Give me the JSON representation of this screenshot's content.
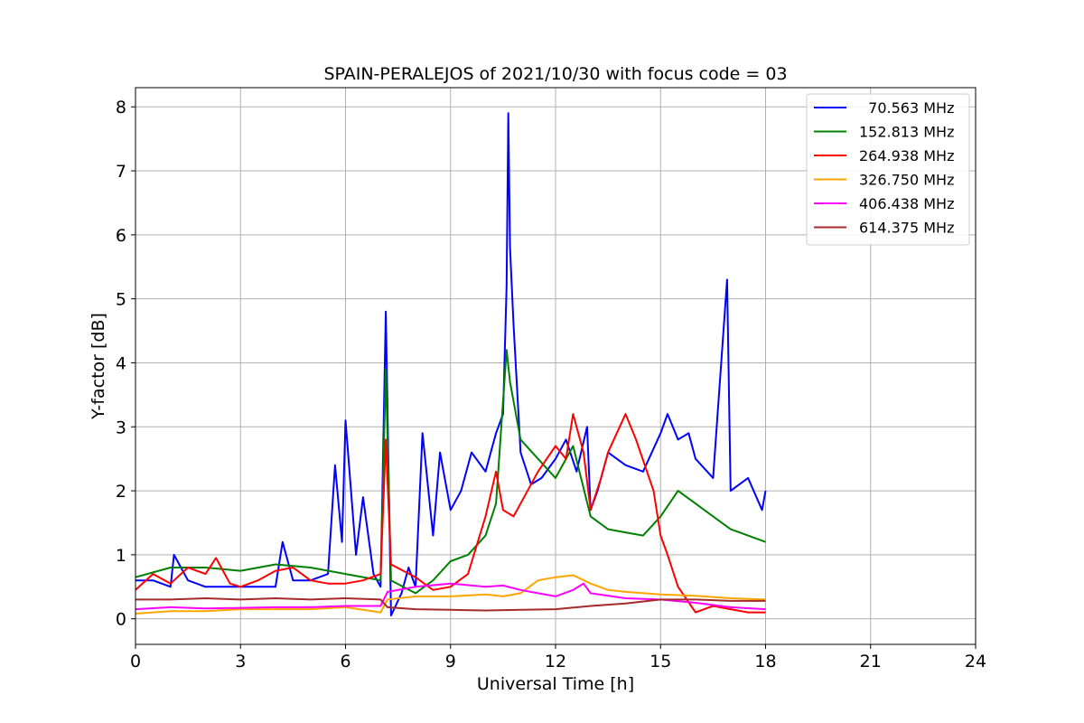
{
  "chart_data": {
    "type": "line",
    "title": "SPAIN-PERALEJOS of 2021/10/30 with focus code = 03",
    "xlabel": "Universal Time [h]",
    "ylabel": "Y-factor [dB]",
    "xlim": [
      0,
      24
    ],
    "ylim": [
      -0.4,
      8.3
    ],
    "xticks": [
      0,
      3,
      6,
      9,
      12,
      15,
      18,
      21,
      24
    ],
    "yticks": [
      0,
      1,
      2,
      3,
      4,
      5,
      6,
      7,
      8
    ],
    "grid": true,
    "legend_position": "top-right",
    "series": [
      {
        "name": "70.563 MHz",
        "legend_label": "  70.563 MHz",
        "color": "#0000ff",
        "x": [
          0,
          0.5,
          1,
          1.1,
          1.5,
          2,
          2.5,
          3,
          3.5,
          4,
          4.2,
          4.5,
          5,
          5.5,
          5.7,
          5.9,
          6,
          6.3,
          6.5,
          6.8,
          7,
          7.15,
          7.3,
          7.6,
          7.8,
          8,
          8.2,
          8.5,
          8.7,
          9,
          9.3,
          9.6,
          10,
          10.3,
          10.5,
          10.6,
          10.65,
          10.7,
          10.8,
          11,
          11.3,
          11.6,
          12,
          12.3,
          12.6,
          12.9,
          13,
          13.2,
          13.5,
          14,
          14.5,
          15,
          15.2,
          15.5,
          15.8,
          16,
          16.5,
          16.9,
          17,
          17.5,
          17.9,
          18
        ],
        "y": [
          0.6,
          0.6,
          0.5,
          1.0,
          0.6,
          0.5,
          0.5,
          0.5,
          0.5,
          0.5,
          1.2,
          0.6,
          0.6,
          0.7,
          2.4,
          1.2,
          3.1,
          1.0,
          1.9,
          0.7,
          0.5,
          4.8,
          0.05,
          0.4,
          0.8,
          0.5,
          2.9,
          1.3,
          2.6,
          1.7,
          2.0,
          2.6,
          2.3,
          2.9,
          3.2,
          5.2,
          7.9,
          5.8,
          4.6,
          2.6,
          2.1,
          2.2,
          2.5,
          2.8,
          2.3,
          3.0,
          1.7,
          2.0,
          2.6,
          2.4,
          2.3,
          2.9,
          3.2,
          2.8,
          2.9,
          2.5,
          2.2,
          5.3,
          2.0,
          2.2,
          1.7,
          2.0
        ]
      },
      {
        "name": "152.813 MHz",
        "legend_label": "152.813 MHz",
        "color": "#008000",
        "x": [
          0,
          1,
          2,
          3,
          4,
          5,
          6,
          7,
          7.15,
          7.3,
          8,
          8.5,
          9,
          9.5,
          10,
          10.3,
          10.6,
          10.7,
          11,
          11.5,
          12,
          12.5,
          13,
          13.5,
          14,
          14.5,
          15,
          15.5,
          16,
          16.5,
          17,
          17.5,
          18
        ],
        "y": [
          0.65,
          0.8,
          0.8,
          0.75,
          0.85,
          0.8,
          0.7,
          0.6,
          3.9,
          0.6,
          0.4,
          0.6,
          0.9,
          1.0,
          1.3,
          1.8,
          4.2,
          3.7,
          2.8,
          2.5,
          2.2,
          2.7,
          1.6,
          1.4,
          1.35,
          1.3,
          1.6,
          2.0,
          1.8,
          1.6,
          1.4,
          1.3,
          1.2
        ]
      },
      {
        "name": "264.938 MHz",
        "legend_label": "264.938 MHz",
        "color": "#ff0000",
        "x": [
          0,
          0.5,
          1,
          1.5,
          2,
          2.3,
          2.7,
          3,
          3.5,
          4,
          4.5,
          5,
          5.5,
          6,
          6.5,
          7,
          7.15,
          7.3,
          8,
          8.5,
          9,
          9.5,
          10,
          10.3,
          10.5,
          10.8,
          11,
          11.5,
          12,
          12.3,
          12.5,
          12.8,
          13,
          13.3,
          13.5,
          14,
          14.3,
          14.8,
          15,
          15.2,
          15.5,
          16,
          16.5,
          17,
          17.5,
          18
        ],
        "y": [
          0.45,
          0.7,
          0.55,
          0.8,
          0.7,
          0.95,
          0.55,
          0.5,
          0.6,
          0.75,
          0.8,
          0.6,
          0.55,
          0.55,
          0.6,
          0.7,
          2.8,
          0.85,
          0.65,
          0.45,
          0.5,
          0.7,
          1.6,
          2.3,
          1.7,
          1.6,
          1.8,
          2.3,
          2.7,
          2.5,
          3.2,
          2.6,
          1.7,
          2.2,
          2.6,
          3.2,
          2.8,
          2.0,
          1.3,
          1.0,
          0.5,
          0.1,
          0.2,
          0.15,
          0.1,
          0.1
        ]
      },
      {
        "name": "326.750 MHz",
        "legend_label": "326.750 MHz",
        "color": "#ffa500",
        "x": [
          0,
          1,
          2,
          3,
          4,
          5,
          6,
          7,
          7.2,
          8,
          9,
          10,
          10.5,
          11,
          11.5,
          12,
          12.5,
          13,
          13.5,
          14,
          15,
          16,
          17,
          18
        ],
        "y": [
          0.08,
          0.12,
          0.12,
          0.15,
          0.15,
          0.15,
          0.18,
          0.1,
          0.3,
          0.35,
          0.35,
          0.38,
          0.35,
          0.4,
          0.6,
          0.65,
          0.68,
          0.55,
          0.45,
          0.42,
          0.38,
          0.36,
          0.32,
          0.3
        ]
      },
      {
        "name": "406.438 MHz",
        "legend_label": "406.438 MHz",
        "color": "#ff00ff",
        "x": [
          0,
          1,
          2,
          3,
          4,
          5,
          6,
          7,
          7.2,
          8,
          9,
          10,
          10.5,
          11,
          11.5,
          12,
          12.5,
          12.8,
          13,
          14,
          15,
          16,
          17,
          18
        ],
        "y": [
          0.15,
          0.18,
          0.16,
          0.17,
          0.18,
          0.18,
          0.2,
          0.2,
          0.42,
          0.5,
          0.55,
          0.5,
          0.52,
          0.45,
          0.4,
          0.35,
          0.45,
          0.55,
          0.4,
          0.32,
          0.3,
          0.25,
          0.18,
          0.15
        ]
      },
      {
        "name": "614.375 MHz",
        "legend_label": "614.375 MHz",
        "color": "#a52a2a",
        "x": [
          0,
          1,
          2,
          3,
          4,
          5,
          6,
          7,
          7.2,
          8,
          9,
          10,
          11,
          12,
          13,
          14,
          15,
          16,
          17,
          18
        ],
        "y": [
          0.3,
          0.3,
          0.32,
          0.3,
          0.32,
          0.3,
          0.32,
          0.3,
          0.18,
          0.15,
          0.14,
          0.13,
          0.14,
          0.15,
          0.2,
          0.24,
          0.3,
          0.3,
          0.28,
          0.28
        ]
      }
    ]
  }
}
